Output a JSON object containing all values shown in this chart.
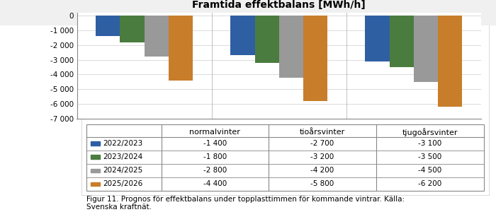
{
  "title": "Framtida effektbalans [MWh/h]",
  "series": [
    {
      "label": "2022/2023",
      "color": "#2e5fa3",
      "values": [
        -1400,
        -2700,
        -3100
      ]
    },
    {
      "label": "2023/2024",
      "color": "#4a7c3f",
      "values": [
        -1800,
        -3200,
        -3500
      ]
    },
    {
      "label": "2024/2025",
      "color": "#999999",
      "values": [
        -2800,
        -4200,
        -4500
      ]
    },
    {
      "label": "2025/2026",
      "color": "#c87d2a",
      "values": [
        -4400,
        -5800,
        -6200
      ]
    }
  ],
  "categories": [
    "normalvinter",
    "tioårsvinter",
    "tjugoårsvinter"
  ],
  "ylim": [
    -7000,
    200
  ],
  "yticks": [
    0,
    -1000,
    -2000,
    -3000,
    -4000,
    -5000,
    -6000,
    -7000
  ],
  "ytick_labels": [
    "0",
    "-1 000",
    "-2 000",
    "-3 000",
    "-4 000",
    "-5 000",
    "-6 000",
    "-7 000"
  ],
  "table_col_headers": [
    "normalvinter",
    "tioårsvinter",
    "tjugoårsvinter"
  ],
  "table_rows": [
    [
      "2022/2023",
      "-1 400",
      "-2 700",
      "-3 100"
    ],
    [
      "2023/2024",
      "-1 800",
      "-3 200",
      "-3 500"
    ],
    [
      "2024/2025",
      "-2 800",
      "-4 200",
      "-4 500"
    ],
    [
      "2025/2026",
      "-4 400",
      "-5 800",
      "-6 200"
    ]
  ],
  "table_row_colors": [
    "#2e5fa3",
    "#4a7c3f",
    "#999999",
    "#c87d2a"
  ],
  "background_color": "#ffffff",
  "title_fontsize": 10,
  "tick_fontsize": 7.5,
  "bar_width": 0.18,
  "group_positions": [
    0,
    1,
    2
  ],
  "caption": "Figur 11. Prognos för effektbalans under topplasttimmen för kommande vintrar. Källa:\nSvenska kraftnät."
}
